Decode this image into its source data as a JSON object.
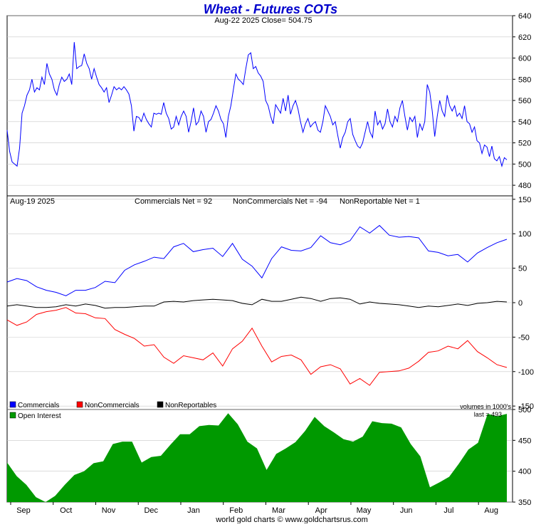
{
  "header": {
    "title": "Wheat - Futures COTs",
    "subtitle": "Aug-22  2025   Close= 504.75"
  },
  "cot_header": {
    "date": "Aug-19  2025",
    "commercials_net": "Commercials Net = 92",
    "noncommercials_net": "NonCommercials Net = -94",
    "nonreportable_net": "NonReportable Net = 1"
  },
  "legend": {
    "commercials": "Commercials",
    "noncommercials": "NonCommercials",
    "nonreportables": "NonReportables",
    "volumes_note": "volumes in 1000's"
  },
  "oi_legend": {
    "open_interest": "Open Interest",
    "last": "last = 493"
  },
  "footer": "world gold charts © www.goldchartsrus.com",
  "colors": {
    "title": "#0000cc",
    "price_line": "#0000ff",
    "commercials": "#0000ff",
    "noncommercials": "#ff0000",
    "nonreportables": "#000000",
    "open_interest": "#009900",
    "grid": "#c8c8c8",
    "frame": "#000000"
  },
  "chart_data": [
    {
      "type": "line",
      "panel": "price",
      "title": "Wheat - Futures COTs",
      "x_month_labels": [
        "Sep",
        "Oct",
        "Nov",
        "Dec",
        "Jan",
        "Feb",
        "Mar",
        "Apr",
        "May",
        "Jun",
        "Jul",
        "Aug"
      ],
      "ylim": [
        470,
        640
      ],
      "y_ticks": [
        480,
        500,
        520,
        540,
        560,
        580,
        600,
        620,
        640
      ],
      "grid": true,
      "series": [
        {
          "values": [
            532,
            512,
            502,
            500,
            498,
            515,
            548,
            555,
            565,
            570,
            580,
            568,
            572,
            570,
            582,
            575,
            595,
            585,
            580,
            570,
            565,
            575,
            582,
            578,
            580,
            585,
            575,
            615,
            590,
            592,
            593,
            604,
            595,
            590,
            580,
            590,
            582,
            575,
            572,
            568,
            572,
            558,
            565,
            573,
            570,
            572,
            570,
            573,
            570,
            566,
            555,
            531,
            545,
            544,
            540,
            548,
            542,
            538,
            535,
            548,
            547,
            548,
            547,
            558,
            548,
            543,
            533,
            535,
            545,
            537,
            545,
            550,
            545,
            530,
            540,
            553,
            537,
            540,
            550,
            545,
            530,
            540,
            542,
            548,
            555,
            550,
            542,
            538,
            525,
            545,
            555,
            570,
            585,
            580,
            578,
            575,
            590,
            603,
            605,
            590,
            592,
            586,
            583,
            578,
            560,
            555,
            545,
            538,
            556,
            552,
            548,
            562,
            550,
            565,
            547,
            555,
            560,
            552,
            540,
            530,
            538,
            543,
            535,
            538,
            540,
            532,
            530,
            540,
            555,
            550,
            545,
            537,
            540,
            527,
            515,
            525,
            530,
            540,
            543,
            528,
            522,
            517,
            515,
            520,
            530,
            540,
            530,
            525,
            550,
            537,
            541,
            533,
            538,
            552,
            540,
            535,
            545,
            540,
            553,
            560,
            545,
            532,
            544,
            540,
            545,
            525,
            538,
            532,
            540,
            575,
            568,
            550,
            526,
            545,
            560,
            550,
            545,
            565,
            555,
            550,
            555,
            545,
            548,
            543,
            555,
            540,
            538,
            530,
            535,
            522,
            520,
            510,
            518,
            516,
            507,
            517,
            505,
            503,
            507,
            498,
            506,
            504
          ]
        }
      ]
    },
    {
      "type": "line",
      "panel": "cot",
      "ylim": [
        -155,
        155
      ],
      "y_ticks": [
        150,
        100,
        50,
        0,
        -50,
        -100,
        -150
      ],
      "grid": true,
      "legend_placement": "bottom-left",
      "series": [
        {
          "name": "Commercials",
          "values": [
            30,
            35,
            32,
            23,
            18,
            15,
            10,
            18,
            18,
            22,
            31,
            29,
            47,
            55,
            60,
            66,
            64,
            81,
            86,
            74,
            77,
            79,
            67,
            86,
            63,
            53,
            36,
            64,
            81,
            76,
            75,
            80,
            97,
            87,
            84,
            90,
            110,
            101,
            112,
            98,
            95,
            96,
            94,
            75,
            73,
            68,
            70,
            59,
            72,
            80,
            87,
            92
          ]
        },
        {
          "name": "NonCommercials",
          "values": [
            -25,
            -33,
            -28,
            -17,
            -13,
            -11,
            -7,
            -15,
            -16,
            -22,
            -23,
            -39,
            -46,
            -52,
            -63,
            -61,
            -79,
            -88,
            -77,
            -80,
            -83,
            -73,
            -92,
            -67,
            -56,
            -37,
            -63,
            -86,
            -78,
            -76,
            -83,
            -104,
            -93,
            -90,
            -96,
            -118,
            -110,
            -120,
            -101,
            -100,
            -99,
            -95,
            -85,
            -72,
            -70,
            -63,
            -67,
            -55,
            -71,
            -80,
            -90,
            -94
          ]
        },
        {
          "name": "NonReportables",
          "values": [
            -5,
            -3,
            -5,
            -7,
            -7,
            -6,
            -3,
            -5,
            -2,
            -4,
            -8,
            -7,
            -7,
            -6,
            -5,
            -5,
            1,
            2,
            1,
            3,
            4,
            5,
            4,
            3,
            -1,
            -3,
            5,
            2,
            2,
            5,
            8,
            6,
            2,
            6,
            7,
            5,
            -2,
            1,
            -1,
            -2,
            -3,
            -5,
            -7,
            -5,
            -6,
            -4,
            -2,
            -4,
            -1,
            0,
            2,
            1
          ]
        }
      ]
    },
    {
      "type": "area",
      "panel": "open_interest",
      "ylim": [
        350,
        500
      ],
      "y_ticks": [
        350,
        400,
        450,
        500
      ],
      "grid": true,
      "legend_placement": "top-left",
      "series": [
        {
          "name": "Open Interest",
          "values": [
            414,
            392,
            378,
            358,
            350,
            360,
            378,
            394,
            400,
            413,
            416,
            444,
            448,
            448,
            414,
            423,
            425,
            443,
            460,
            460,
            473,
            475,
            474,
            494,
            476,
            448,
            437,
            402,
            428,
            437,
            447,
            465,
            488,
            473,
            463,
            452,
            448,
            456,
            481,
            478,
            477,
            471,
            444,
            424,
            374,
            382,
            391,
            412,
            435,
            446,
            493,
            489,
            493
          ]
        }
      ]
    }
  ]
}
